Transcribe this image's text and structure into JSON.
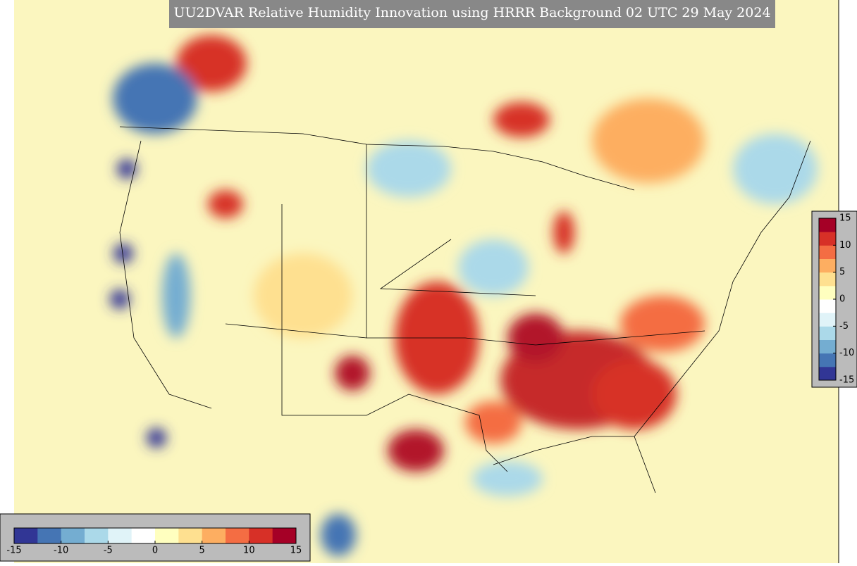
{
  "title": "UU2DVAR Relative Humidity Innovation using HRRR Background 02 UTC 29 May 2024",
  "colorbar": {
    "range": [
      -15,
      15
    ],
    "ticks": [
      -15,
      -10,
      -5,
      0,
      5,
      10,
      15
    ],
    "colors": [
      "#313695",
      "#4575b4",
      "#74add1",
      "#abd9e9",
      "#e0f3f8",
      "#ffffff",
      "#ffffbf",
      "#fee090",
      "#fdae61",
      "#f46d43",
      "#d73027",
      "#a50026"
    ]
  }
}
